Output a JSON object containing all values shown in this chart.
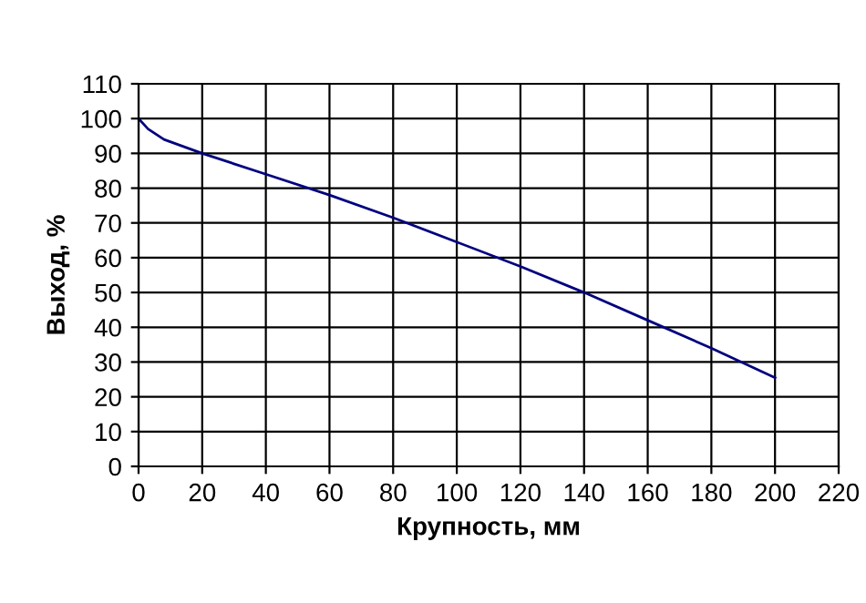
{
  "chart_data": {
    "type": "line",
    "xlabel": "Крупность, мм",
    "ylabel": "Выход, %",
    "series": [
      {
        "color": "#000080",
        "x": [
          0,
          3,
          8,
          20,
          40,
          60,
          80,
          100,
          120,
          140,
          160,
          180,
          200
        ],
        "values": [
          100,
          97,
          94,
          90,
          84,
          78,
          71.5,
          64.5,
          57.5,
          50,
          42,
          34,
          25.5
        ]
      }
    ],
    "xlim": [
      0,
      220
    ],
    "ylim": [
      0,
      110
    ],
    "xticks": [
      0,
      20,
      40,
      60,
      80,
      100,
      120,
      140,
      160,
      180,
      200,
      220
    ],
    "yticks": [
      0,
      10,
      20,
      30,
      40,
      50,
      60,
      70,
      80,
      90,
      100,
      110
    ],
    "grid": true,
    "marker": "none",
    "line_style": "solid"
  }
}
